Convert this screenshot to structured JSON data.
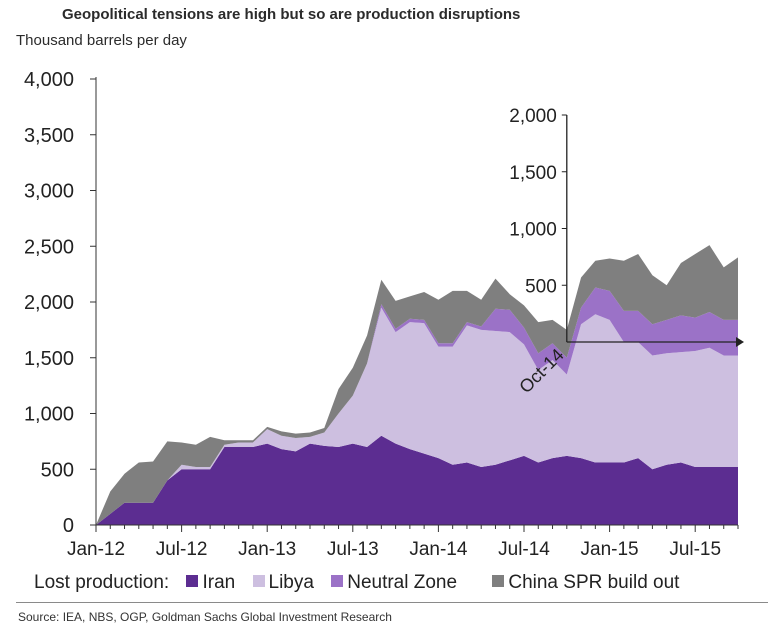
{
  "chart_data": {
    "type": "area",
    "stacked": true,
    "title": "Geopolitical tensions are high but so are production disruptions",
    "ylabel": "Thousand barrels per day",
    "ylim": [
      0,
      4000
    ],
    "yticks": [
      "0",
      "500",
      "1,000",
      "1,500",
      "2,000",
      "2,500",
      "3,000",
      "3,500",
      "4,000"
    ],
    "x_tick_labels": [
      "Jan-12",
      "Jul-12",
      "Jan-13",
      "Jul-13",
      "Jan-14",
      "Jul-14",
      "Jan-15",
      "Jul-15"
    ],
    "x": [
      "Jan-12",
      "Feb-12",
      "Mar-12",
      "Apr-12",
      "May-12",
      "Jun-12",
      "Jul-12",
      "Aug-12",
      "Sep-12",
      "Oct-12",
      "Nov-12",
      "Dec-12",
      "Jan-13",
      "Feb-13",
      "Mar-13",
      "Apr-13",
      "May-13",
      "Jun-13",
      "Jul-13",
      "Aug-13",
      "Sep-13",
      "Oct-13",
      "Nov-13",
      "Dec-13",
      "Jan-14",
      "Feb-14",
      "Mar-14",
      "Apr-14",
      "May-14",
      "Jun-14",
      "Jul-14",
      "Aug-14",
      "Sep-14",
      "Oct-14",
      "Nov-14",
      "Dec-14",
      "Jan-15",
      "Feb-15",
      "Mar-15",
      "Apr-15",
      "May-15",
      "Jun-15",
      "Jul-15",
      "Aug-15",
      "Sep-15",
      "Oct-15"
    ],
    "series": [
      {
        "name": "Iran",
        "color": "#5c2d91",
        "values": [
          0,
          100,
          200,
          200,
          200,
          400,
          500,
          500,
          500,
          700,
          700,
          700,
          730,
          680,
          660,
          730,
          710,
          700,
          730,
          700,
          800,
          730,
          680,
          640,
          600,
          540,
          560,
          520,
          540,
          580,
          620,
          560,
          600,
          620,
          600,
          560,
          560,
          560,
          600,
          500,
          540,
          560,
          520,
          520,
          520,
          520
        ]
      },
      {
        "name": "Libya",
        "color": "#cdbfe0",
        "values": [
          0,
          0,
          0,
          0,
          0,
          0,
          40,
          20,
          20,
          20,
          40,
          40,
          130,
          120,
          120,
          60,
          120,
          300,
          430,
          750,
          1150,
          1000,
          1140,
          1170,
          1000,
          1060,
          1230,
          1230,
          1200,
          1150,
          1000,
          830,
          880,
          730,
          1200,
          1330,
          1280,
          1080,
          1040,
          1020,
          1000,
          990,
          1040,
          1070,
          1000,
          1000
        ]
      },
      {
        "name": "Neutral Zone",
        "color": "#9b72c7",
        "values": [
          0,
          0,
          0,
          0,
          0,
          0,
          0,
          0,
          0,
          0,
          0,
          0,
          0,
          0,
          0,
          0,
          0,
          0,
          0,
          0,
          30,
          30,
          30,
          30,
          30,
          30,
          30,
          30,
          200,
          200,
          150,
          150,
          150,
          150,
          150,
          240,
          260,
          280,
          280,
          280,
          300,
          330,
          300,
          320,
          320,
          320
        ]
      },
      {
        "name": "China SPR build out",
        "color": "#7f7f7f",
        "values": [
          0,
          200,
          260,
          360,
          370,
          350,
          200,
          200,
          270,
          40,
          20,
          20,
          20,
          40,
          40,
          40,
          40,
          220,
          250,
          250,
          220,
          250,
          200,
          250,
          390,
          470,
          280,
          240,
          270,
          140,
          200,
          280,
          210,
          250,
          270,
          240,
          290,
          450,
          510,
          440,
          310,
          470,
          570,
          600,
          470,
          560
        ]
      }
    ],
    "inset": {
      "origin_label": "Oct-14",
      "yticks": [
        "500",
        "1,000",
        "1,500",
        "2,000"
      ]
    }
  },
  "legend": {
    "lead": "Lost production:"
  },
  "source": "Source: IEA, NBS, OGP, Goldman Sachs Global Investment Research"
}
